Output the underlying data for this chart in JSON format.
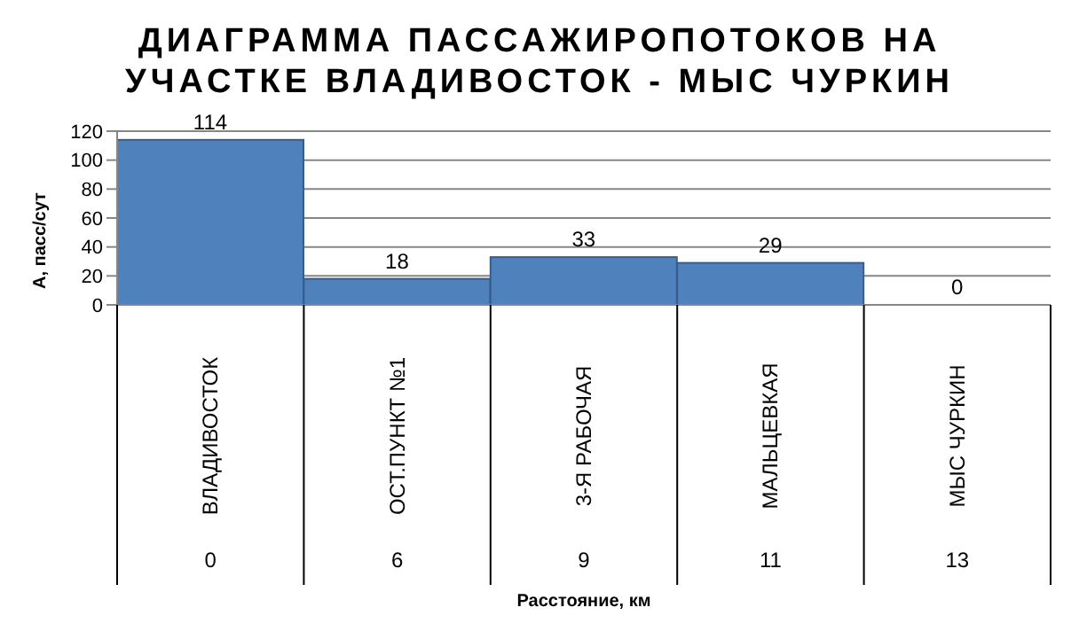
{
  "chart_data": {
    "type": "bar",
    "title": "ДИАГРАММА ПАССАЖИРОПОТОКОВ НА УЧАСТКЕ ВЛАДИВОСТОК - МЫС ЧУРКИН",
    "xlabel": "Расстояние, км",
    "ylabel": "А, пасс/сут",
    "categories": [
      "ВЛАДИВОСТОК",
      "ОСТ.ПУНКТ №1",
      "3-Я РАБОЧАЯ",
      "МАЛЬЦЕВКАЯ",
      "МЫС ЧУРКИН"
    ],
    "values": [
      114,
      18,
      33,
      29,
      0
    ],
    "color": "#4f81bd",
    "data_labels": true,
    "ylim": [
      0,
      120
    ],
    "yticks": [
      0,
      20,
      40,
      60,
      80,
      100,
      120
    ],
    "grid": "y",
    "annotations": [
      "0",
      "6",
      "9",
      "11",
      "13"
    ]
  }
}
